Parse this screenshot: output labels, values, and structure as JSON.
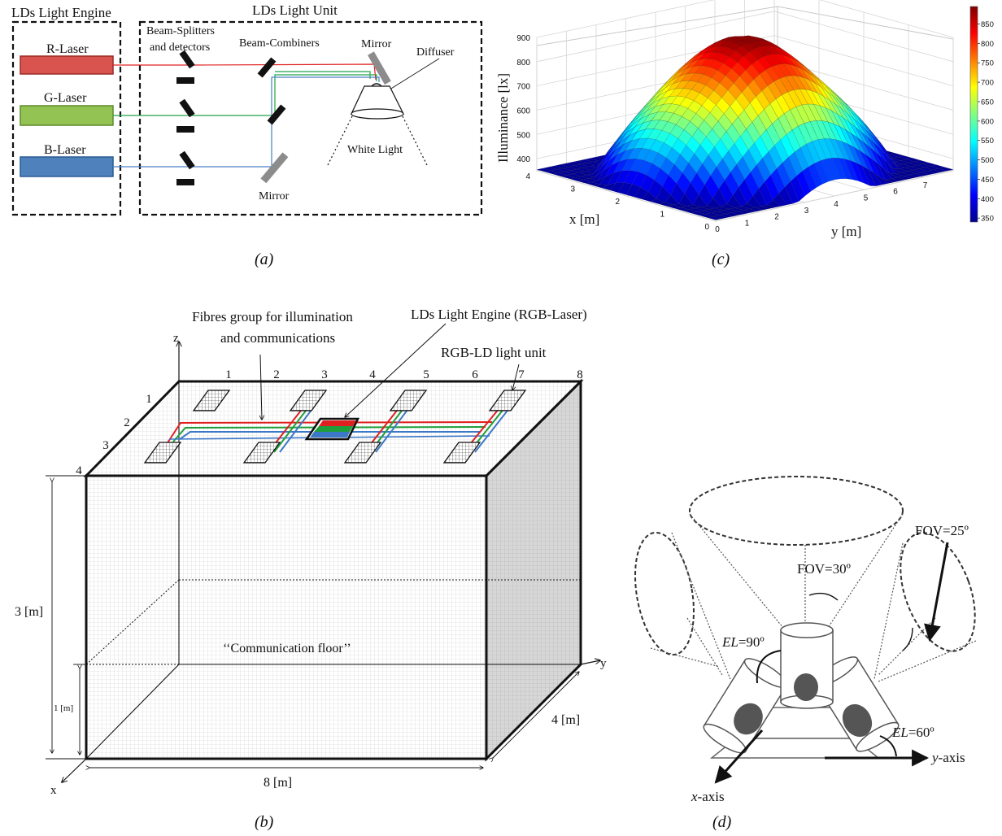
{
  "panel_a": {
    "caption": "(a)",
    "engine_title": "LDs Light Engine",
    "unit_title": "LDs Light Unit",
    "lasers": [
      {
        "label": "R-Laser",
        "color": "#d9534f"
      },
      {
        "label": "G-Laser",
        "color": "#92c353"
      },
      {
        "label": "B-Laser",
        "color": "#4f81bd"
      }
    ],
    "splitters_label_1": "Beam-Splitters",
    "splitters_label_2": "and detectors",
    "combiners_label": "Beam-Combiners",
    "mirror_top": "Mirror",
    "mirror_bottom": "Mirror",
    "diffuser": "Diffuser",
    "white_light": "White Light"
  },
  "panel_b": {
    "caption": "(b)",
    "fibres_label_1": "Fibres group for illumination",
    "fibres_label_2": "and communications",
    "engine_label": "LDs Light Engine (RGB-Laser)",
    "unit_label": "RGB-LD light unit",
    "top_numbers": [
      "1",
      "2",
      "3",
      "4",
      "5",
      "6",
      "7",
      "8"
    ],
    "side_numbers": [
      "1",
      "2",
      "3",
      "4"
    ],
    "axis_z": "z",
    "axis_x": "x",
    "axis_y": "y",
    "height_label": "3 [m]",
    "floor_height_label": "1 [m]",
    "length_label": "8 [m]",
    "width_label": "4 [m]",
    "floor_label": "‘‘Communication floor’’"
  },
  "panel_c": {
    "caption": "(c)",
    "chart_data": {
      "type": "surface",
      "zlabel": "Illuminance [lx]",
      "xlabel": "x [m]",
      "ylabel": "y [m]",
      "x_ticks": [
        "0",
        "1",
        "2",
        "3",
        "4"
      ],
      "y_ticks": [
        "0",
        "1",
        "2",
        "3",
        "4",
        "5",
        "6",
        "7"
      ],
      "z_ticks": [
        "400",
        "500",
        "600",
        "700",
        "800",
        "900"
      ],
      "colorbar_ticks": [
        "350",
        "400",
        "450",
        "500",
        "550",
        "600",
        "650",
        "700",
        "750",
        "800",
        "850"
      ],
      "xlim": [
        0,
        4
      ],
      "ylim": [
        0,
        8
      ],
      "zlim": [
        350,
        900
      ],
      "colormap": "jet",
      "grid": true
    }
  },
  "panel_d": {
    "caption": "(d)",
    "fov_top": "FOV=30º",
    "fov_side": "FOV=25º",
    "el_top_prefix": "EL",
    "el_top_value": "=90º",
    "el_side_prefix": "EL",
    "el_side_value": "=60º",
    "x_axis_prefix": "x",
    "x_axis_suffix": "-axis",
    "y_axis_prefix": "y",
    "y_axis_suffix": "-axis"
  }
}
